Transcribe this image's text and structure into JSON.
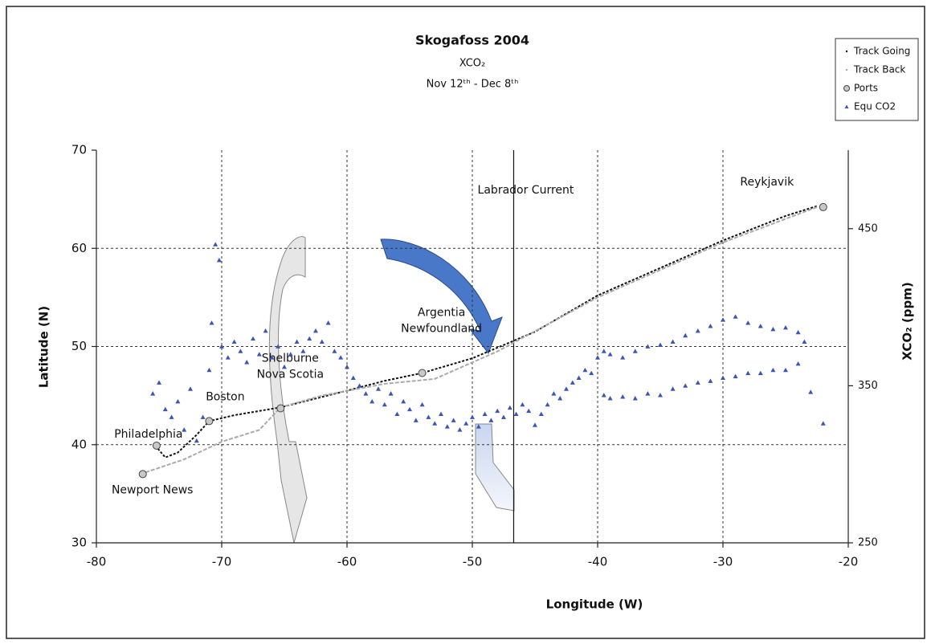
{
  "chart_data": {
    "type": "scatter",
    "title": "Skogafoss 2004",
    "subtitle": "XCO₂",
    "date_range": "Nov 12ᵗʰ - Dec 8ᵗʰ",
    "xlabel": "Longitude (W)",
    "ylabel": "Latitude (N)",
    "y2label": "XCO₂ (ppm)",
    "xlim": [
      -80,
      -20
    ],
    "xticks": [
      -80,
      -70,
      -60,
      -50,
      -40,
      -30,
      -20
    ],
    "ylim": [
      30,
      70
    ],
    "yticks": [
      30,
      40,
      50,
      60,
      70
    ],
    "y2lim": [
      250,
      500
    ],
    "y2ticks": [
      250,
      350,
      450
    ],
    "grid": true,
    "legend": "top-right",
    "annotations": [
      {
        "text": "Labrador Current",
        "x": -46.7
      }
    ],
    "series": [
      {
        "name": "Track Going",
        "color": "#111111",
        "x": [
          -75.3,
          -74.5,
          -73.5,
          -72,
          -71,
          -69,
          -65.3,
          -60,
          -57,
          -54,
          -50,
          -45,
          -40,
          -35,
          -30,
          -25,
          -22.5
        ],
        "values": [
          39.9,
          38.7,
          39.2,
          41,
          42.4,
          43,
          43.8,
          45.5,
          46.5,
          47.3,
          48.8,
          51.5,
          55.2,
          58,
          60.8,
          63.3,
          64.3
        ]
      },
      {
        "name": "Track Back",
        "color": "#aaaaaa",
        "x": [
          -22.5,
          -30,
          -40,
          -48,
          -53,
          -57,
          -62,
          -65.3,
          -67,
          -70,
          -73,
          -76.5
        ],
        "values": [
          64.2,
          60.6,
          55,
          49.5,
          46.7,
          46.2,
          45,
          43.8,
          41.5,
          40.3,
          38.5,
          37
        ]
      },
      {
        "name": "Ports",
        "color": "#c8c8c8",
        "x": [
          -76.3,
          -75.2,
          -71,
          -65.3,
          -54,
          -22
        ],
        "values": [
          37,
          39.9,
          42.4,
          43.7,
          47.3,
          64.2
        ],
        "labels": [
          [
            "Newport News"
          ],
          [
            "Philadelphia"
          ],
          [
            "Boston"
          ],
          [
            "Shelburne",
            "Nova Scotia"
          ],
          [
            "Argentia",
            "Newfoundland"
          ],
          [
            "Reykjavik"
          ]
        ]
      },
      {
        "name": "Equ CO2",
        "color": "#3a55b4",
        "axis": "y2",
        "x": [
          -75.5,
          -75,
          -74.5,
          -74,
          -73.5,
          -73,
          -72.5,
          -72,
          -71.5,
          -71,
          -70.8,
          -70.5,
          -70.2,
          -70,
          -69.5,
          -69,
          -68.5,
          -68,
          -67.5,
          -67,
          -66.5,
          -66,
          -65.5,
          -65,
          -64.5,
          -64,
          -63.5,
          -63,
          -62.5,
          -62,
          -61.5,
          -61,
          -60.5,
          -60,
          -59.5,
          -59,
          -58.5,
          -58,
          -57.5,
          -57,
          -56.5,
          -56,
          -55.5,
          -55,
          -54.5,
          -54,
          -53.5,
          -53,
          -52.5,
          -52,
          -51.5,
          -51,
          -50.5,
          -50,
          -49.5,
          -49,
          -48.5,
          -48,
          -47.5,
          -47,
          -46.5,
          -46,
          -45.5,
          -45,
          -44.5,
          -44,
          -43.5,
          -43,
          -42.5,
          -42,
          -41.5,
          -41,
          -40.5,
          -40,
          -39.5,
          -39,
          -38,
          -37,
          -36,
          -35,
          -34,
          -33,
          -32,
          -31,
          -30,
          -29,
          -28,
          -27,
          -26,
          -25,
          -24,
          -23.5,
          -39.5,
          -39,
          -38,
          -37,
          -36,
          -35,
          -34,
          -33,
          -32,
          -31,
          -30,
          -29,
          -28,
          -27,
          -26,
          -25,
          -24,
          -23,
          -22
        ],
        "values": [
          345,
          352,
          335,
          330,
          340,
          322,
          348,
          315,
          330,
          360,
          390,
          440,
          430,
          375,
          368,
          378,
          372,
          365,
          380,
          370,
          385,
          368,
          375,
          362,
          370,
          378,
          372,
          380,
          385,
          378,
          390,
          372,
          368,
          362,
          355,
          350,
          345,
          340,
          348,
          338,
          345,
          332,
          340,
          335,
          328,
          338,
          330,
          326,
          332,
          324,
          328,
          322,
          326,
          330,
          324,
          332,
          328,
          334,
          330,
          336,
          332,
          338,
          334,
          325,
          332,
          338,
          345,
          342,
          348,
          352,
          355,
          360,
          358,
          368,
          372,
          370,
          368,
          372,
          375,
          376,
          378,
          382,
          385,
          388,
          392,
          394,
          390,
          388,
          386,
          387,
          384,
          378,
          344,
          342,
          343,
          342,
          345,
          344,
          348,
          350,
          352,
          353,
          355,
          356,
          358,
          358,
          360,
          360,
          364,
          346,
          326
        ]
      }
    ]
  }
}
